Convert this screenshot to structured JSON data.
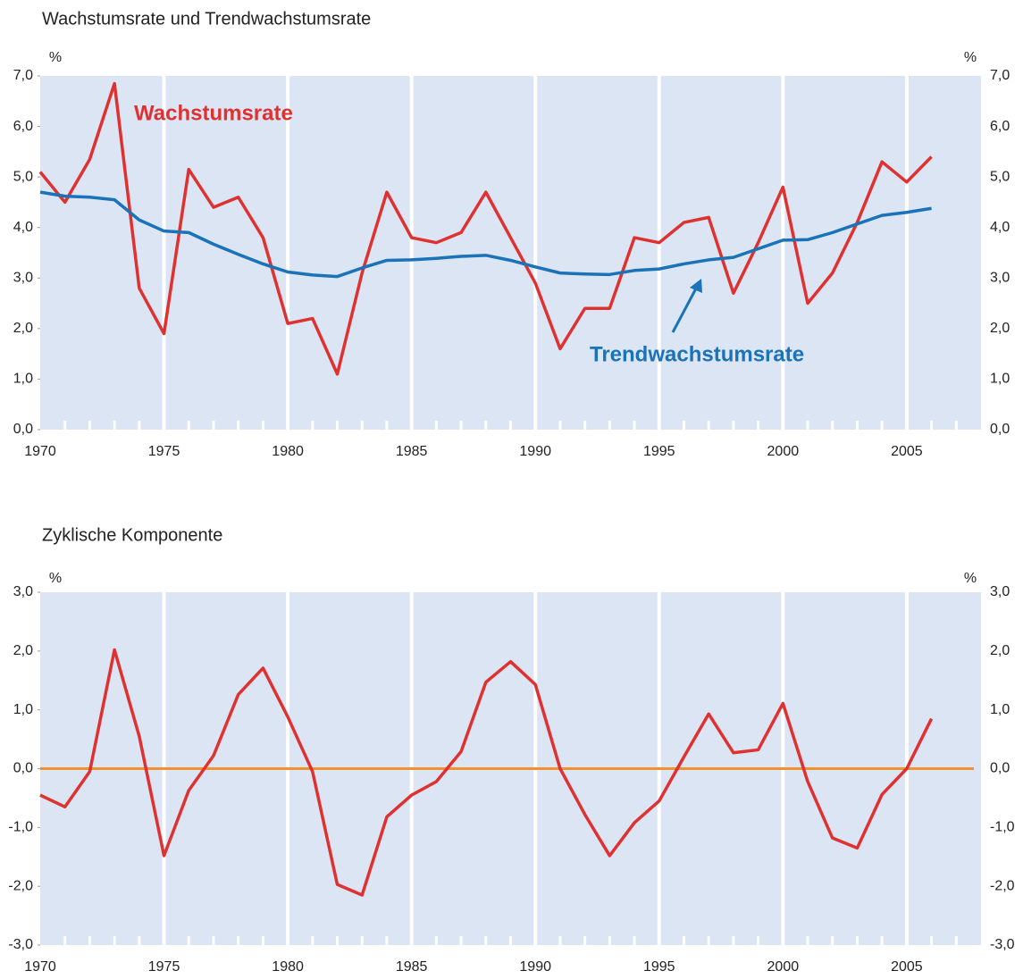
{
  "chart_data": [
    {
      "type": "line",
      "title": "Wachstumsrate und Trendwachstumsrate",
      "unit": "%",
      "x": [
        1970,
        1971,
        1972,
        1973,
        1974,
        1975,
        1976,
        1977,
        1978,
        1979,
        1980,
        1981,
        1982,
        1983,
        1984,
        1985,
        1986,
        1987,
        1988,
        1989,
        1990,
        1991,
        1992,
        1993,
        1994,
        1995,
        1996,
        1997,
        1998,
        1999,
        2000,
        2001,
        2002,
        2003,
        2004,
        2005,
        2006
      ],
      "series": [
        {
          "name": "Wachstumsrate",
          "color": "#e03131",
          "values": [
            5.1,
            4.5,
            5.35,
            6.85,
            2.8,
            1.9,
            5.15,
            4.4,
            4.6,
            3.8,
            2.1,
            2.2,
            1.1,
            3.1,
            4.7,
            3.8,
            3.7,
            3.9,
            4.7,
            3.8,
            2.9,
            1.6,
            2.4,
            2.4,
            3.8,
            3.7,
            4.1,
            4.2,
            2.7,
            3.7,
            4.8,
            2.5,
            3.1,
            4.1,
            5.3,
            4.9,
            5.4
          ]
        },
        {
          "name": "Trendwachstumsrate",
          "color": "#1a72b8",
          "values": [
            4.7,
            4.62,
            4.6,
            4.55,
            4.15,
            3.93,
            3.9,
            3.67,
            3.47,
            3.28,
            3.12,
            3.06,
            3.03,
            3.2,
            3.35,
            3.36,
            3.39,
            3.43,
            3.45,
            3.35,
            3.22,
            3.1,
            3.08,
            3.07,
            3.15,
            3.18,
            3.28,
            3.36,
            3.41,
            3.58,
            3.75,
            3.76,
            3.9,
            4.07,
            4.24,
            4.3,
            4.38
          ]
        }
      ],
      "xlim": [
        1970,
        2008
      ],
      "xticks": [
        1970,
        1975,
        1980,
        1985,
        1990,
        1995,
        2000,
        2005
      ],
      "xminorticks": [
        1971,
        1972,
        1973,
        1974,
        1976,
        1977,
        1978,
        1979,
        1981,
        1982,
        1983,
        1984,
        1986,
        1987,
        1988,
        1989,
        1991,
        1992,
        1993,
        1994,
        1996,
        1997,
        1998,
        1999,
        2001,
        2002,
        2003,
        2004,
        2006,
        2007
      ],
      "ylim": [
        0,
        7
      ],
      "yticks": [
        {
          "value": 0,
          "label": "0,0"
        },
        {
          "value": 1,
          "label": "1,0"
        },
        {
          "value": 2,
          "label": "2,0"
        },
        {
          "value": 3,
          "label": "3,0"
        },
        {
          "value": 4,
          "label": "4,0"
        },
        {
          "value": 5,
          "label": "5,0"
        },
        {
          "value": 6,
          "label": "6,0"
        },
        {
          "value": 7,
          "label": "7,0"
        }
      ],
      "grid": true,
      "background": "#dbe5f4"
    },
    {
      "type": "line",
      "title": "Zyklische Komponente",
      "unit": "%",
      "x": [
        1970,
        1971,
        1972,
        1973,
        1974,
        1975,
        1976,
        1977,
        1978,
        1979,
        1980,
        1981,
        1982,
        1983,
        1984,
        1985,
        1986,
        1987,
        1988,
        1989,
        1990,
        1991,
        1992,
        1993,
        1994,
        1995,
        1996,
        1997,
        1998,
        1999,
        2000,
        2001,
        2002,
        2003,
        2004,
        2005,
        2006
      ],
      "series": [
        {
          "name": "Zyklische Komponente",
          "color": "#e03131",
          "values": [
            -0.45,
            -0.65,
            -0.05,
            2.02,
            0.55,
            -1.48,
            -0.37,
            0.22,
            1.26,
            1.71,
            0.88,
            -0.05,
            -1.97,
            -2.15,
            -0.82,
            -0.45,
            -0.22,
            0.29,
            1.47,
            1.82,
            1.43,
            0.0,
            -0.78,
            -1.48,
            -0.92,
            -0.55,
            0.2,
            0.93,
            0.27,
            0.32,
            1.11,
            -0.22,
            -1.18,
            -1.35,
            -0.44,
            0.0,
            0.85
          ]
        }
      ],
      "reference_line": {
        "value": 0,
        "color": "#f0922e"
      },
      "xlim": [
        1970,
        2008
      ],
      "xticks": [
        1970,
        1975,
        1980,
        1985,
        1990,
        1995,
        2000,
        2005
      ],
      "xminorticks": [
        1971,
        1972,
        1973,
        1974,
        1976,
        1977,
        1978,
        1979,
        1981,
        1982,
        1983,
        1984,
        1986,
        1987,
        1988,
        1989,
        1991,
        1992,
        1993,
        1994,
        1996,
        1997,
        1998,
        1999,
        2001,
        2002,
        2003,
        2004,
        2006,
        2007
      ],
      "ylim": [
        -3,
        3
      ],
      "yticks": [
        {
          "value": -3,
          "label": "-3,0"
        },
        {
          "value": -2,
          "label": "-2,0"
        },
        {
          "value": -1,
          "label": "-1,0"
        },
        {
          "value": 0,
          "label": "0,0"
        },
        {
          "value": 1,
          "label": "1,0"
        },
        {
          "value": 2,
          "label": "2,0"
        },
        {
          "value": 3,
          "label": "3,0"
        }
      ],
      "grid": true,
      "background": "#dbe5f4"
    }
  ]
}
